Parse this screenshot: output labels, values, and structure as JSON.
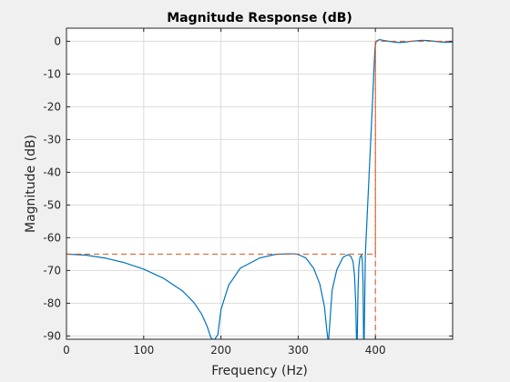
{
  "chart_data": {
    "type": "line",
    "title": "Magnitude Response (dB)",
    "xlabel": "Frequency (Hz)",
    "ylabel": "Magnitude (dB)",
    "xlim": [
      0,
      500
    ],
    "ylim": [
      -91,
      4
    ],
    "grid": true,
    "x_ticks": [
      0,
      100,
      200,
      300,
      400
    ],
    "y_ticks": [
      0,
      -10,
      -20,
      -30,
      -40,
      -50,
      -60,
      -70,
      -80,
      -90
    ],
    "series": [
      {
        "color": "#0072bd",
        "style": "solid",
        "x": [
          0,
          25,
          50,
          75,
          100,
          125,
          150,
          165,
          175,
          182,
          187,
          189,
          190,
          192,
          196,
          200,
          210,
          225,
          250,
          270,
          285,
          295,
          300,
          310,
          320,
          328,
          334,
          337,
          338.5,
          339.5,
          341,
          344,
          350,
          358,
          364,
          368,
          371,
          373,
          374.5,
          375.5,
          376.5,
          377.5,
          378.5,
          380,
          382,
          383.2,
          384,
          384.7,
          385.5,
          387,
          390,
          393,
          396,
          398,
          399.5,
          401,
          405,
          410,
          420,
          430,
          440,
          450,
          460,
          470,
          480,
          490,
          500
        ],
        "y": [
          -65,
          -65.3,
          -66.2,
          -67.6,
          -69.6,
          -72.3,
          -76.2,
          -79.8,
          -83.3,
          -87,
          -90.5,
          -91,
          -91,
          -91,
          -89.6,
          -82,
          -74.5,
          -69.3,
          -66.2,
          -65.1,
          -64.9,
          -64.9,
          -65.1,
          -66.2,
          -69.3,
          -74.1,
          -81,
          -88,
          -91,
          -91,
          -86,
          -76,
          -69.8,
          -66,
          -65.2,
          -65.6,
          -67.2,
          -71.5,
          -80,
          -91,
          -91,
          -76,
          -69,
          -66,
          -65.2,
          -67.2,
          -74,
          -91,
          -91,
          -65,
          -50,
          -35,
          -20,
          -9,
          -2,
          0,
          0.5,
          0.3,
          -0.1,
          -0.4,
          -0.2,
          0.1,
          0.3,
          0.2,
          -0.1,
          -0.3,
          -0.2
        ]
      },
      {
        "color": "#d95319",
        "style": "dashed",
        "x": [
          0,
          400,
          400,
          500
        ],
        "y": [
          -65,
          -65,
          0,
          0
        ]
      },
      {
        "color": "#d95319",
        "style": "dashed",
        "x": [
          400,
          400
        ],
        "y": [
          -91,
          0
        ]
      }
    ]
  }
}
